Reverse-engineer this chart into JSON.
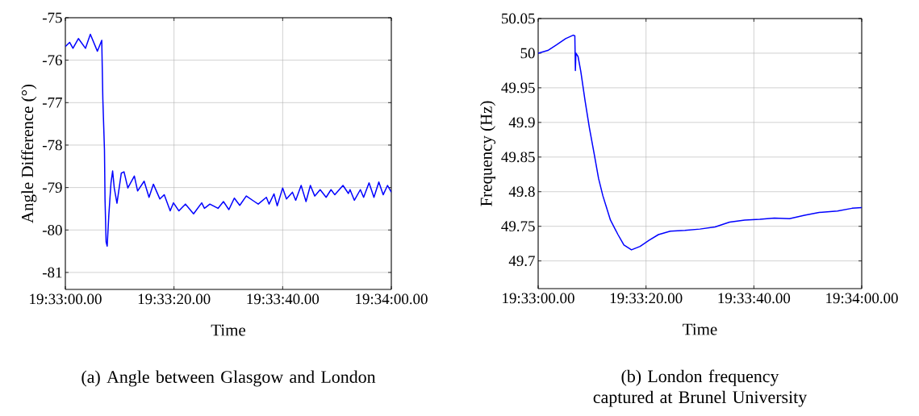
{
  "chart_data": [
    {
      "type": "line",
      "title": "(a)  Angle between Glasgow and London",
      "xlabel": "Time",
      "ylabel": "Angle Difference (°)",
      "xlim": [
        "2000-01-01T19:33:00",
        "2000-01-01T19:34:00"
      ],
      "ylim": [
        -81.4,
        -75
      ],
      "xticks": [
        {
          "value": "2000-01-01T19:33:00",
          "label": "19:33:00.00"
        },
        {
          "value": "2000-01-01T19:33:20",
          "label": "19:33:20.00"
        },
        {
          "value": "2000-01-01T19:33:40",
          "label": "19:33:40.00"
        },
        {
          "value": "2000-01-01T19:34:00",
          "label": "19:34:00.00"
        }
      ],
      "yticks": [
        -81,
        -80,
        -79,
        -78,
        -77,
        -76,
        -75
      ],
      "grid": true,
      "series": [
        {
          "color": "#0000ff",
          "x": [
            "2000-01-01T19:33:00.0",
            "2000-01-01T19:33:00.8",
            "2000-01-01T19:33:01.4",
            "2000-01-01T19:33:02.4",
            "2000-01-01T19:33:03.7",
            "2000-01-01T19:33:04.6",
            "2000-01-01T19:33:05.9",
            "2000-01-01T19:33:06.7",
            "2000-01-01T19:33:06.9",
            "2000-01-01T19:33:07.2",
            "2000-01-01T19:33:07.3",
            "2000-01-01T19:33:07.5",
            "2000-01-01T19:33:07.7",
            "2000-01-01T19:33:08.0",
            "2000-01-01T19:33:08.4",
            "2000-01-01T19:33:08.7",
            "2000-01-01T19:33:09.0",
            "2000-01-01T19:33:09.5",
            "2000-01-01T19:33:10.3",
            "2000-01-01T19:33:10.8",
            "2000-01-01T19:33:11.5",
            "2000-01-01T19:33:12.7",
            "2000-01-01T19:33:13.3",
            "2000-01-01T19:33:14.5",
            "2000-01-01T19:33:15.4",
            "2000-01-01T19:33:16.2",
            "2000-01-01T19:33:17.4",
            "2000-01-01T19:33:18.2",
            "2000-01-01T19:33:19.3",
            "2000-01-01T19:33:19.9",
            "2000-01-01T19:33:20.9",
            "2000-01-01T19:33:22.1",
            "2000-01-01T19:33:23.6",
            "2000-01-01T19:33:25.1",
            "2000-01-01T19:33:25.6",
            "2000-01-01T19:33:26.6",
            "2000-01-01T19:33:28.1",
            "2000-01-01T19:33:29.1",
            "2000-01-01T19:33:30.1",
            "2000-01-01T19:33:31.1",
            "2000-01-01T19:33:32.1",
            "2000-01-01T19:33:33.3",
            "2000-01-01T19:33:34.8",
            "2000-01-01T19:33:35.5",
            "2000-01-01T19:33:37.0",
            "2000-01-01T19:33:37.5",
            "2000-01-01T19:33:38.4",
            "2000-01-01T19:33:39.0",
            "2000-01-01T19:33:40.0",
            "2000-01-01T19:33:40.7",
            "2000-01-01T19:33:41.8",
            "2000-01-01T19:33:42.4",
            "2000-01-01T19:33:43.4",
            "2000-01-01T19:33:44.3",
            "2000-01-01T19:33:45.1",
            "2000-01-01T19:33:45.9",
            "2000-01-01T19:33:46.9",
            "2000-01-01T19:33:48.0",
            "2000-01-01T19:33:48.9",
            "2000-01-01T19:33:49.6",
            "2000-01-01T19:33:51.1",
            "2000-01-01T19:33:52.1",
            "2000-01-01T19:33:52.4",
            "2000-01-01T19:33:53.2",
            "2000-01-01T19:33:54.3",
            "2000-01-01T19:33:54.9",
            "2000-01-01T19:33:55.9",
            "2000-01-01T19:33:56.8",
            "2000-01-01T19:33:57.7",
            "2000-01-01T19:33:58.5",
            "2000-01-01T19:33:59.3",
            "2000-01-01T19:34:00.0"
          ],
          "values": [
            -75.68,
            -75.58,
            -75.72,
            -75.49,
            -75.72,
            -75.39,
            -75.79,
            -75.53,
            -76.92,
            -78.12,
            -79.27,
            -80.28,
            -80.38,
            -79.65,
            -78.89,
            -78.61,
            -79.01,
            -79.37,
            -78.66,
            -78.63,
            -79.01,
            -78.73,
            -79.08,
            -78.85,
            -79.23,
            -78.92,
            -79.27,
            -79.17,
            -79.55,
            -79.36,
            -79.55,
            -79.39,
            -79.62,
            -79.36,
            -79.49,
            -79.39,
            -79.49,
            -79.33,
            -79.52,
            -79.25,
            -79.42,
            -79.2,
            -79.33,
            -79.39,
            -79.23,
            -79.39,
            -79.15,
            -79.43,
            -79.01,
            -79.27,
            -79.11,
            -79.3,
            -78.95,
            -79.33,
            -78.95,
            -79.2,
            -79.05,
            -79.23,
            -79.05,
            -79.17,
            -78.95,
            -79.14,
            -79.05,
            -79.3,
            -79.05,
            -79.23,
            -78.89,
            -79.23,
            -78.87,
            -79.17,
            -78.95,
            -79.11
          ]
        }
      ]
    },
    {
      "type": "line",
      "title": "(b) London frequency captured at Brunel University",
      "xlabel": "Time",
      "ylabel": "Frequency (Hz)",
      "xlim": [
        "2000-01-01T19:33:00",
        "2000-01-01T19:34:00"
      ],
      "ylim": [
        49.66,
        50.05
      ],
      "xticks": [
        {
          "value": "2000-01-01T19:33:00",
          "label": "19:33:00.00"
        },
        {
          "value": "2000-01-01T19:33:20",
          "label": "19:33:20.00"
        },
        {
          "value": "2000-01-01T19:33:40",
          "label": "19:33:40.00"
        },
        {
          "value": "2000-01-01T19:34:00",
          "label": "19:34:00.00"
        }
      ],
      "yticks": [
        49.7,
        49.75,
        49.8,
        49.85,
        49.9,
        49.95,
        50,
        50.05
      ],
      "grid": true,
      "series": [
        {
          "color": "#0000ff",
          "x": [
            "2000-01-01T19:33:00.0",
            "2000-01-01T19:33:01.8",
            "2000-01-01T19:33:03.4",
            "2000-01-01T19:33:05.1",
            "2000-01-01T19:33:06.5",
            "2000-01-01T19:33:06.8",
            "2000-01-01T19:33:06.9",
            "2000-01-01T19:33:07.0",
            "2000-01-01T19:33:07.4",
            "2000-01-01T19:33:07.9",
            "2000-01-01T19:33:08.7",
            "2000-01-01T19:33:09.5",
            "2000-01-01T19:33:10.4",
            "2000-01-01T19:33:11.2",
            "2000-01-01T19:33:12.0",
            "2000-01-01T19:33:13.4",
            "2000-01-01T19:33:14.8",
            "2000-01-01T19:33:15.9",
            "2000-01-01T19:33:17.3",
            "2000-01-01T19:33:18.9",
            "2000-01-01T19:33:20.6",
            "2000-01-01T19:33:22.3",
            "2000-01-01T19:33:24.5",
            "2000-01-01T19:33:27.2",
            "2000-01-01T19:33:30.0",
            "2000-01-01T19:33:32.8",
            "2000-01-01T19:33:35.5",
            "2000-01-01T19:33:38.3",
            "2000-01-01T19:33:41.1",
            "2000-01-01T19:33:43.8",
            "2000-01-01T19:33:46.6",
            "2000-01-01T19:33:49.4",
            "2000-01-01T19:33:52.1",
            "2000-01-01T19:33:55.5",
            "2000-01-01T19:33:58.2",
            "2000-01-01T19:34:00.0"
          ],
          "values": [
            50.0,
            50.004,
            50.012,
            50.021,
            50.026,
            50.025,
            49.975,
            50.0,
            49.995,
            49.974,
            49.931,
            49.892,
            49.854,
            49.819,
            49.794,
            49.759,
            49.738,
            49.723,
            49.716,
            49.721,
            49.73,
            49.738,
            49.743,
            49.744,
            49.746,
            49.749,
            49.756,
            49.759,
            49.76,
            49.762,
            49.761,
            49.766,
            49.77,
            49.772,
            49.776,
            49.777
          ]
        }
      ]
    }
  ]
}
